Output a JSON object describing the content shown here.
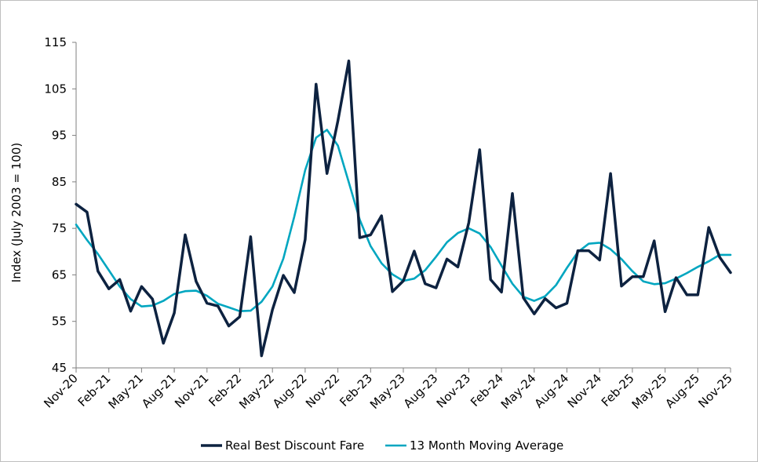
{
  "chart_data": {
    "type": "line",
    "title": "",
    "xlabel": "",
    "ylabel": "Index (July 2003 = 100)",
    "ylim": [
      45,
      115
    ],
    "yticks": [
      45,
      55,
      65,
      75,
      85,
      95,
      105,
      115
    ],
    "x": [
      "Nov-20",
      "Dec-20",
      "Jan-21",
      "Feb-21",
      "Mar-21",
      "Apr-21",
      "May-21",
      "Jun-21",
      "Jul-21",
      "Aug-21",
      "Sep-21",
      "Oct-21",
      "Nov-21",
      "Dec-21",
      "Jan-22",
      "Feb-22",
      "Mar-22",
      "Apr-22",
      "May-22",
      "Jun-22",
      "Jul-22",
      "Aug-22",
      "Sep-22",
      "Oct-22",
      "Nov-22",
      "Dec-22",
      "Jan-23",
      "Feb-23",
      "Mar-23",
      "Apr-23",
      "May-23",
      "Jun-23",
      "Jul-23",
      "Aug-23",
      "Sep-23",
      "Oct-23",
      "Nov-23",
      "Dec-23",
      "Jan-24",
      "Feb-24",
      "Mar-24",
      "Apr-24",
      "May-24",
      "Jun-24",
      "Jul-24",
      "Aug-24",
      "Sep-24",
      "Oct-24",
      "Nov-24",
      "Dec-24",
      "Jan-25",
      "Feb-25",
      "Mar-25",
      "Apr-25",
      "May-25",
      "Jun-25",
      "Jul-25",
      "Aug-25",
      "Sep-25",
      "Oct-25",
      "Nov-25"
    ],
    "xtick_labels": [
      "Nov-20",
      "Feb-21",
      "May-21",
      "Aug-21",
      "Nov-21",
      "Feb-22",
      "May-22",
      "Aug-22",
      "Nov-22",
      "Feb-23",
      "May-23",
      "Aug-23",
      "Nov-23",
      "Feb-24",
      "May-24",
      "Aug-24",
      "Nov-24",
      "Feb-25",
      "May-25",
      "Aug-25",
      "Nov-25"
    ],
    "series": [
      {
        "name": "Real Best Discount Fare",
        "color": "#0d2240",
        "values": [
          80.2,
          78.5,
          65.8,
          62,
          64,
          57.2,
          62.5,
          59.8,
          50.3,
          56.8,
          73.6,
          63.6,
          58.9,
          58.3,
          54,
          56,
          73.2,
          47.6,
          57.5,
          64.9,
          61.2,
          72.6,
          106,
          86.8,
          98.1,
          111,
          73,
          73.6,
          77.7,
          61.4,
          63.7,
          70.1,
          63.1,
          62.2,
          68.4,
          66.7,
          76.2,
          91.9,
          64,
          61.3,
          82.5,
          60.1,
          56.6,
          59.9,
          57.9,
          58.9,
          70.2,
          70.2,
          68.2,
          86.8,
          62.6,
          64.6,
          64.6,
          72.3,
          57.1,
          64.4,
          60.7,
          60.7,
          75.2,
          68.8,
          65.5
        ]
      },
      {
        "name": "13 Month Moving Average",
        "color": "#00a6c0",
        "values": [
          75.8,
          72.5,
          69.5,
          66,
          62.5,
          59.8,
          58.2,
          58.4,
          59.4,
          60.9,
          61.5,
          61.6,
          60.5,
          58.8,
          58,
          57.2,
          57.3,
          59.2,
          62.5,
          68.5,
          77.5,
          87.5,
          94.5,
          96.2,
          92.8,
          84.9,
          76.9,
          71.2,
          67.5,
          65.1,
          63.7,
          64.2,
          66,
          68.9,
          72,
          74,
          75,
          73.9,
          71,
          67,
          63.1,
          60.3,
          59.4,
          60.4,
          62.8,
          66.5,
          69.9,
          71.7,
          71.9,
          70.5,
          68.4,
          65.8,
          63.6,
          63,
          63.2,
          64.2,
          65.4,
          66.7,
          67.9,
          69.3,
          69.3
        ]
      }
    ]
  }
}
